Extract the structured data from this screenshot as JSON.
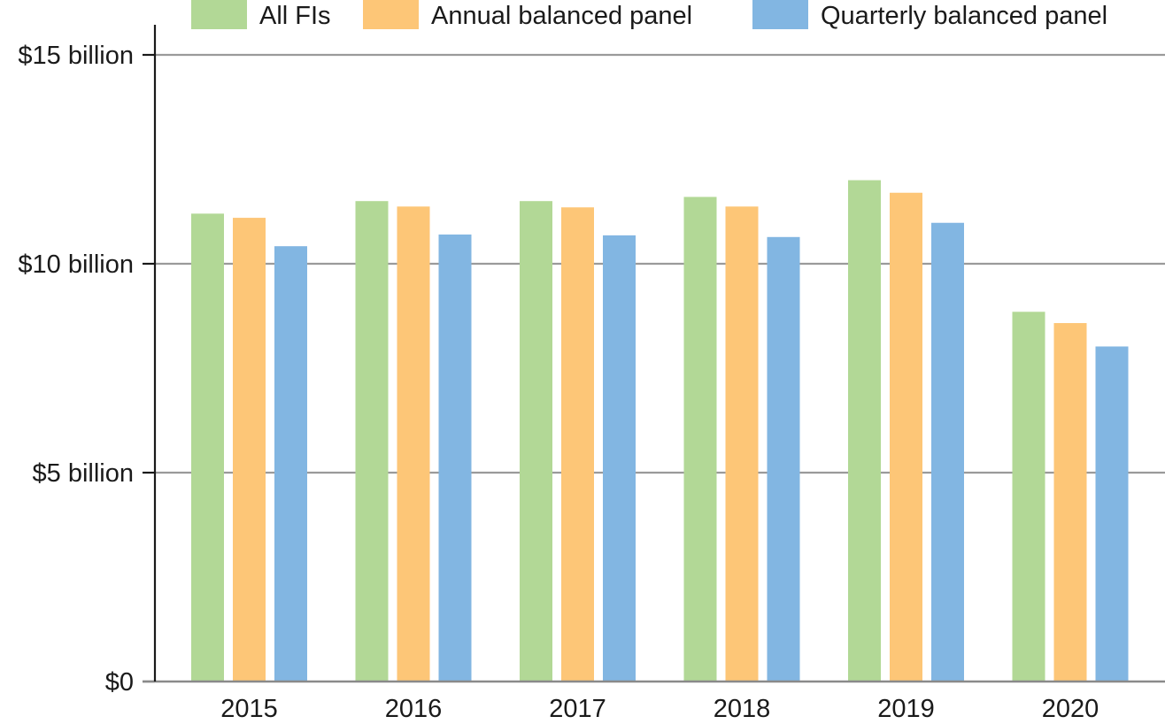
{
  "chart_data": {
    "type": "bar",
    "title": "",
    "xlabel": "",
    "ylabel": "",
    "categories": [
      "2015",
      "2016",
      "2017",
      "2018",
      "2019",
      "2020"
    ],
    "series": [
      {
        "name": "All FIs",
        "color": "#b2d896",
        "values": [
          11.2,
          11.5,
          11.5,
          11.6,
          12.0,
          8.85
        ]
      },
      {
        "name": "Annual balanced panel",
        "color": "#fdc677",
        "values": [
          11.1,
          11.37,
          11.35,
          11.37,
          11.7,
          8.58
        ]
      },
      {
        "name": "Quarterly balanced panel",
        "color": "#82b6e2",
        "values": [
          10.42,
          10.7,
          10.68,
          10.64,
          10.98,
          8.02
        ]
      }
    ],
    "y_ticks": [
      {
        "value": 0,
        "label": "$0"
      },
      {
        "value": 5,
        "label": "$5 billion"
      },
      {
        "value": 10,
        "label": "$10 billion"
      },
      {
        "value": 15,
        "label": "$15 billion"
      }
    ],
    "ylim": [
      0,
      15
    ],
    "grid": true,
    "legend_position": "top"
  }
}
